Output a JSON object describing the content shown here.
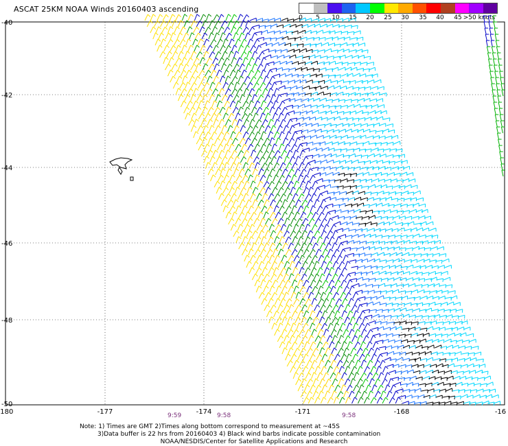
{
  "title": "ASCAT 25KM NOAA Winds 20160403 ascending",
  "legend": {
    "colors": [
      "#ffffff",
      "#bfbfbf",
      "#4b0ff0",
      "#1e63f0",
      "#00c8ff",
      "#00ff00",
      "#ffe800",
      "#ffaa00",
      "#ff5000",
      "#ff0000",
      "#b04020",
      "#ff00ff",
      "#a000ff",
      "#6000a0"
    ],
    "labels": [
      "0",
      "5",
      "10",
      "15",
      "20",
      "25",
      "30",
      "35",
      "40",
      "45",
      ">50 knots"
    ]
  },
  "map": {
    "lon_ticks": [
      "-180",
      "-177",
      "-174",
      "-171",
      "-168",
      "-16"
    ],
    "lat_ticks": [
      "-40",
      "-42",
      "-44",
      "-46",
      "-48",
      "-50"
    ],
    "times": [
      "9:59",
      "9:58",
      "9:58"
    ]
  },
  "notes": {
    "line1": "Note: 1) Times are GMT 2)Times along bottom correspond to measurement at ~45S",
    "line2": "3)Data buffer is 22 hrs from 20160403 4) Black wind barbs indicate possible contamination",
    "line3": "NOAA/NESDIS/Center for Satellite Applications and Research"
  }
}
